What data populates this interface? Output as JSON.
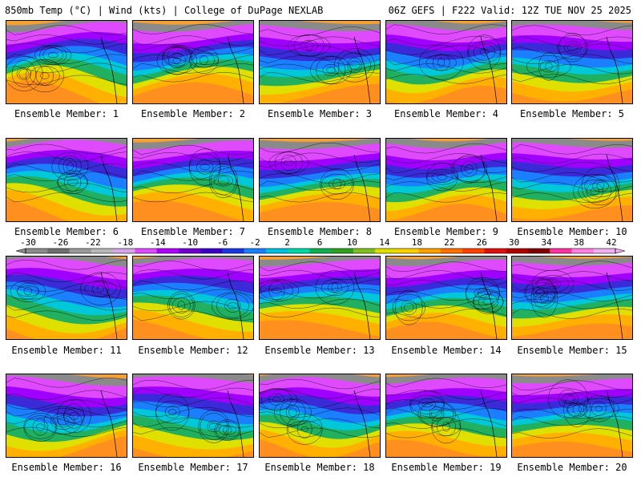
{
  "header": {
    "left": "850mb Temp (°C) | Wind (kts) | College of DuPage NEXLAB",
    "right": "06Z GEFS | F222 Valid: 12Z TUE NOV 25 2025"
  },
  "members": [
    {
      "label": "Ensemble Member: 1"
    },
    {
      "label": "Ensemble Member: 2"
    },
    {
      "label": "Ensemble Member: 3"
    },
    {
      "label": "Ensemble Member: 4"
    },
    {
      "label": "Ensemble Member: 5"
    },
    {
      "label": "Ensemble Member: 6"
    },
    {
      "label": "Ensemble Member: 7"
    },
    {
      "label": "Ensemble Member: 8"
    },
    {
      "label": "Ensemble Member: 9"
    },
    {
      "label": "Ensemble Member: 10"
    },
    {
      "label": "Ensemble Member: 11"
    },
    {
      "label": "Ensemble Member: 12"
    },
    {
      "label": "Ensemble Member: 13"
    },
    {
      "label": "Ensemble Member: 14"
    },
    {
      "label": "Ensemble Member: 15"
    },
    {
      "label": "Ensemble Member: 16"
    },
    {
      "label": "Ensemble Member: 17"
    },
    {
      "label": "Ensemble Member: 18"
    },
    {
      "label": "Ensemble Member: 19"
    },
    {
      "label": "Ensemble Member: 20"
    }
  ],
  "colorbar": {
    "ticks": [
      "-30",
      "-26",
      "-22",
      "-18",
      "-14",
      "-10",
      "-6",
      "-2",
      "2",
      "6",
      "10",
      "14",
      "18",
      "22",
      "26",
      "30",
      "34",
      "38",
      "42"
    ],
    "colors": [
      "#8c8c8c",
      "#6f6f6f",
      "#9a9a9a",
      "#b8b8b8",
      "#d6a6e6",
      "#e04aff",
      "#b000ff",
      "#7000d0",
      "#3a00c8",
      "#1a38e0",
      "#1a80ff",
      "#00c0e0",
      "#00d8a8",
      "#10b050",
      "#30a020",
      "#80c020",
      "#e0e000",
      "#ffd000",
      "#ffa000",
      "#ff7000",
      "#ff4000",
      "#e01010",
      "#b00000",
      "#800000",
      "#ff30a0",
      "#ff80e0",
      "#f0b0f0"
    ]
  }
}
